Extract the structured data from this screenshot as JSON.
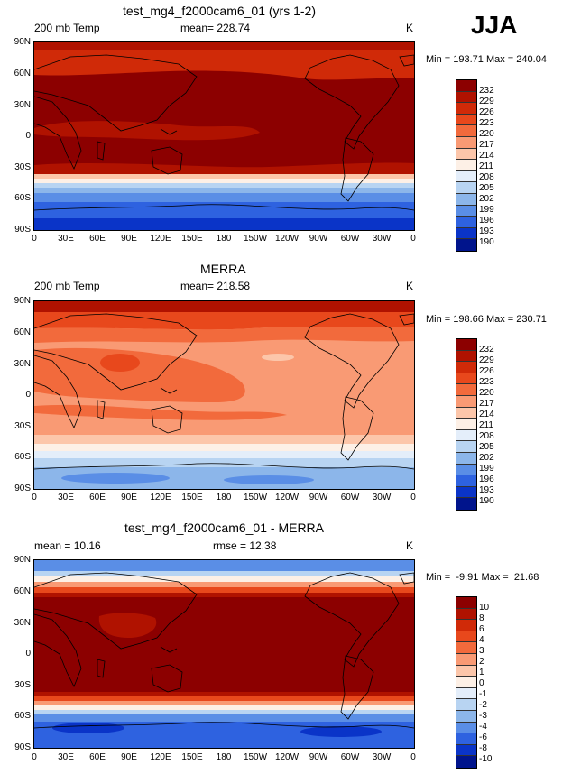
{
  "season": "JJA",
  "x_ticks": [
    "0",
    "30E",
    "60E",
    "90E",
    "120E",
    "150E",
    "180",
    "150W",
    "120W",
    "90W",
    "60W",
    "30W",
    "0"
  ],
  "y_ticks": [
    "90N",
    "60N",
    "30N",
    "0",
    "30S",
    "60S",
    "90S"
  ],
  "panels": [
    {
      "title": "test_mg4_f2000cam6_01 (yrs 1-2)",
      "left_label": "200 mb Temp",
      "center_label": "mean= 228.74",
      "right_label": "K",
      "min_max": "Min = 193.71 Max = 240.04",
      "levels": [
        "232",
        "229",
        "226",
        "223",
        "220",
        "217",
        "214",
        "211",
        "208",
        "205",
        "202",
        "199",
        "196",
        "193",
        "190"
      ],
      "colors": [
        "#8c0000",
        "#b01200",
        "#d02a08",
        "#e8481c",
        "#f26a3c",
        "#f99a74",
        "#fcc6aa",
        "#fdf0e6",
        "#e4eefa",
        "#b8d4f2",
        "#8cb6ea",
        "#5a8ee6",
        "#2e62e0",
        "#0a34c8",
        "#00148c"
      ]
    },
    {
      "title": "MERRA",
      "left_label": "200 mb Temp",
      "center_label": "mean= 218.58",
      "right_label": "K",
      "min_max": "Min = 198.66 Max = 230.71",
      "levels": [
        "232",
        "229",
        "226",
        "223",
        "220",
        "217",
        "214",
        "211",
        "208",
        "205",
        "202",
        "199",
        "196",
        "193",
        "190"
      ],
      "colors": [
        "#8c0000",
        "#b01200",
        "#d02a08",
        "#e8481c",
        "#f26a3c",
        "#f99a74",
        "#fcc6aa",
        "#fdf0e6",
        "#e4eefa",
        "#b8d4f2",
        "#8cb6ea",
        "#5a8ee6",
        "#2e62e0",
        "#0a34c8",
        "#00148c"
      ]
    },
    {
      "title": "test_mg4_f2000cam6_01 - MERRA",
      "left_label": "mean =  10.16",
      "center_label": "rmse =  12.38",
      "right_label": "K",
      "min_max": "Min =  -9.91 Max =  21.68",
      "levels": [
        "10",
        "8",
        "6",
        "4",
        "3",
        "2",
        "1",
        "0",
        "-1",
        "-2",
        "-3",
        "-4",
        "-6",
        "-8",
        "-10"
      ],
      "colors": [
        "#8c0000",
        "#b01200",
        "#d02a08",
        "#e8481c",
        "#f26a3c",
        "#f99a74",
        "#fcc6aa",
        "#fdf0e6",
        "#e4eefa",
        "#b8d4f2",
        "#8cb6ea",
        "#5a8ee6",
        "#2e62e0",
        "#0a34c8",
        "#00148c"
      ]
    }
  ]
}
